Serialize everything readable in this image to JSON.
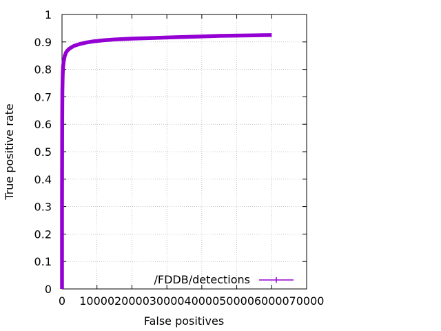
{
  "chart_data": {
    "type": "line",
    "xlabel": "False positives",
    "ylabel": "True positive rate",
    "xlim": [
      0,
      70000
    ],
    "ylim": [
      0,
      1
    ],
    "xticks": [
      0,
      10000,
      20000,
      30000,
      40000,
      50000,
      60000,
      70000
    ],
    "xtick_labels": [
      "0",
      "10000",
      "20000",
      "30000",
      "40000",
      "50000",
      "60000",
      "70000"
    ],
    "yticks": [
      0,
      0.1,
      0.2,
      0.3,
      0.4,
      0.5,
      0.6,
      0.7,
      0.8,
      0.9,
      1
    ],
    "ytick_labels": [
      "0",
      "0.1",
      "0.2",
      "0.3",
      "0.4",
      "0.5",
      "0.6",
      "0.7",
      "0.8",
      "0.9",
      "1"
    ],
    "grid": true,
    "legend_position": "bottom-right",
    "series": [
      {
        "name": "/FDDB/detections",
        "color": "#9400d3",
        "points": [
          [
            0,
            0
          ],
          [
            0,
            0.3
          ],
          [
            50,
            0.6
          ],
          [
            100,
            0.72
          ],
          [
            200,
            0.78
          ],
          [
            300,
            0.81
          ],
          [
            500,
            0.83
          ],
          [
            800,
            0.85
          ],
          [
            1200,
            0.863
          ],
          [
            1800,
            0.872
          ],
          [
            2500,
            0.879
          ],
          [
            3500,
            0.886
          ],
          [
            5000,
            0.892
          ],
          [
            7000,
            0.898
          ],
          [
            9000,
            0.902
          ],
          [
            12000,
            0.906
          ],
          [
            15000,
            0.909
          ],
          [
            20000,
            0.912
          ],
          [
            25000,
            0.914
          ],
          [
            30000,
            0.916
          ],
          [
            35000,
            0.918
          ],
          [
            40000,
            0.92
          ],
          [
            45000,
            0.922
          ],
          [
            50000,
            0.923
          ],
          [
            55000,
            0.924
          ],
          [
            60000,
            0.925
          ]
        ]
      }
    ]
  }
}
